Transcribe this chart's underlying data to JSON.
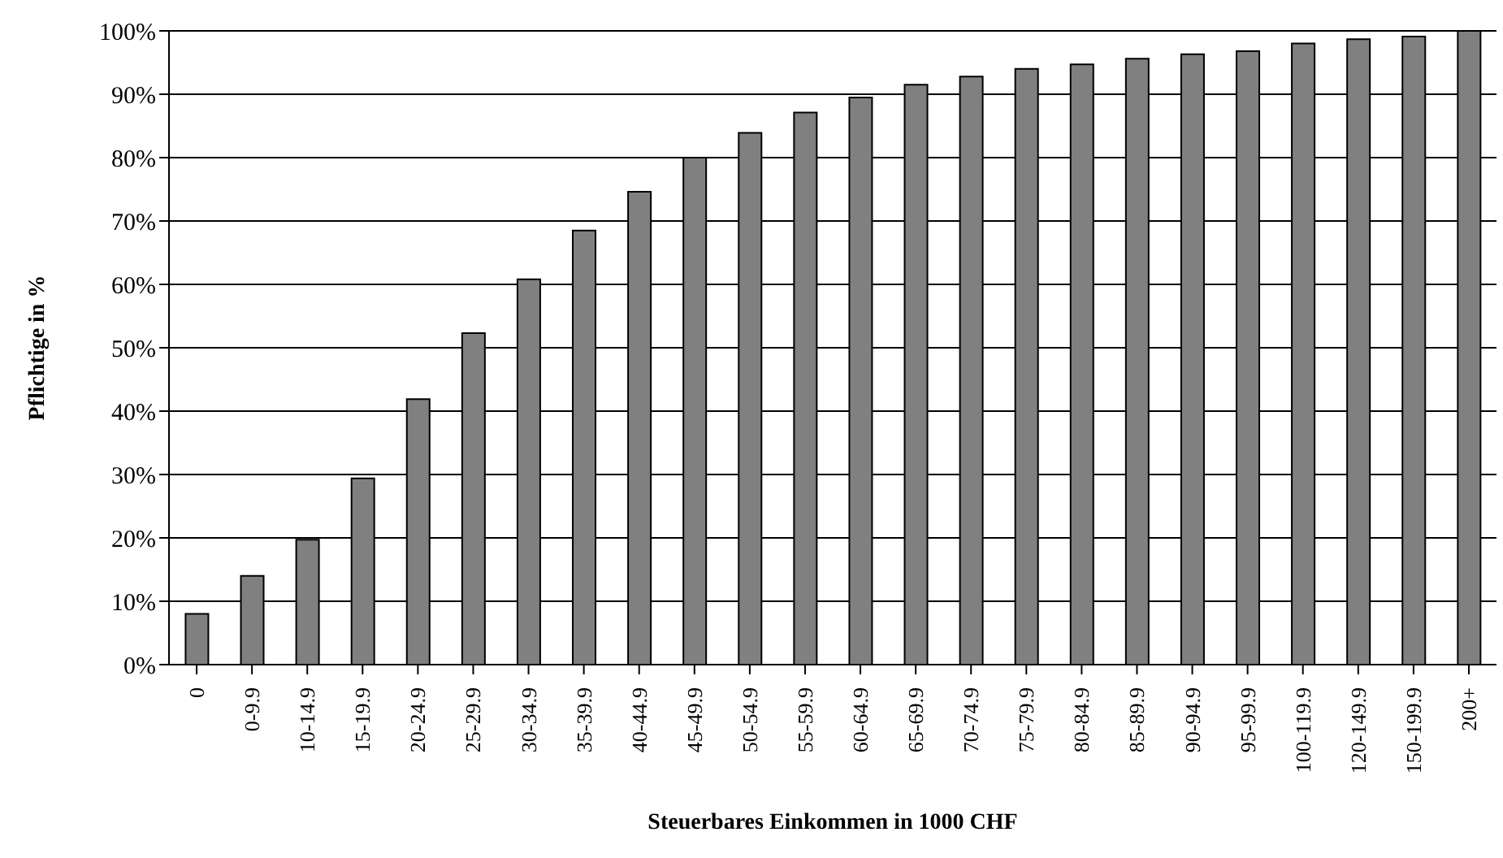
{
  "chart_data": {
    "type": "bar",
    "xlabel": "Steuerbares Einkommen in 1000 CHF",
    "ylabel": "Pflichtige in %",
    "categories": [
      "0",
      "0-9.9",
      "10-14.9",
      "15-19.9",
      "20-24.9",
      "25-29.9",
      "30-34.9",
      "35-39.9",
      "40-44.9",
      "45-49.9",
      "50-54.9",
      "55-59.9",
      "60-64.9",
      "65-69.9",
      "70-74.9",
      "75-79.9",
      "80-84.9",
      "85-89.9",
      "90-94.9",
      "95-99.9",
      "100-119.9",
      "120-149.9",
      "150-199.9",
      "200+"
    ],
    "values": [
      8,
      14,
      19.7,
      29.4,
      41.9,
      52.3,
      60.8,
      68.5,
      74.6,
      80,
      83.9,
      87.1,
      89.5,
      91.5,
      92.8,
      94,
      94.7,
      95.6,
      96.3,
      96.8,
      98,
      98.7,
      99.1,
      100
    ],
    "color": "#808080",
    "ylim": [
      0,
      100
    ],
    "yticks": [
      {
        "value": 0,
        "label": "0%"
      },
      {
        "value": 10,
        "label": "10%"
      },
      {
        "value": 20,
        "label": "20%"
      },
      {
        "value": 30,
        "label": "30%"
      },
      {
        "value": 40,
        "label": "40%"
      },
      {
        "value": 50,
        "label": "50%"
      },
      {
        "value": 60,
        "label": "60%"
      },
      {
        "value": 70,
        "label": "70%"
      },
      {
        "value": 80,
        "label": "80%"
      },
      {
        "value": 90,
        "label": "90%"
      },
      {
        "value": 100,
        "label": "100%"
      }
    ],
    "grid": "y",
    "legend": false
  }
}
